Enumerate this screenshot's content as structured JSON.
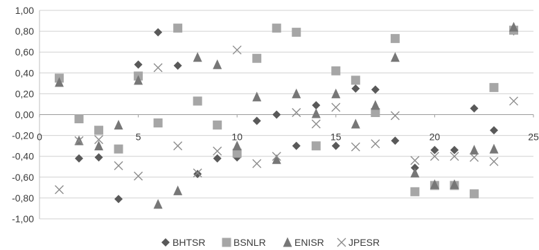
{
  "chart_data": {
    "type": "scatter",
    "xlim": [
      0,
      25
    ],
    "ylim": [
      -1.0,
      1.0
    ],
    "x_ticks": [
      "0",
      "5",
      "10",
      "15",
      "20",
      "25"
    ],
    "y_ticks": [
      "1,00",
      "0,80",
      "0,60",
      "0,40",
      "0,20",
      "0,00",
      "-0,20",
      "-0,40",
      "-0,60",
      "-0,80",
      "-1,00"
    ],
    "grid": "horizontal",
    "legend_position": "bottom",
    "series": [
      {
        "name": "BHTSR",
        "marker": "diamond",
        "color": "#595959",
        "points": [
          [
            2,
            -0.42
          ],
          [
            3,
            -0.41
          ],
          [
            4,
            -0.81
          ],
          [
            5,
            0.48
          ],
          [
            6,
            0.79
          ],
          [
            7,
            0.47
          ],
          [
            8,
            -0.57
          ],
          [
            9,
            -0.42
          ],
          [
            10,
            -0.41
          ],
          [
            11,
            -0.06
          ],
          [
            12,
            0.0
          ],
          [
            13,
            -0.3
          ],
          [
            14,
            0.09
          ],
          [
            15,
            -0.3
          ],
          [
            16,
            0.25
          ],
          [
            17,
            0.24
          ],
          [
            18,
            -0.25
          ],
          [
            19,
            -0.51
          ],
          [
            20,
            -0.34
          ],
          [
            21,
            -0.34
          ],
          [
            22,
            0.06
          ],
          [
            23,
            -0.15
          ],
          [
            24,
            0.8
          ]
        ]
      },
      {
        "name": "BSNLR",
        "marker": "square",
        "color": "#a6a6a6",
        "points": [
          [
            1,
            0.35
          ],
          [
            2,
            -0.04
          ],
          [
            3,
            -0.15
          ],
          [
            4,
            -0.33
          ],
          [
            5,
            0.37
          ],
          [
            6,
            -0.08
          ],
          [
            7,
            0.83
          ],
          [
            8,
            0.13
          ],
          [
            9,
            -0.1
          ],
          [
            10,
            -0.37
          ],
          [
            11,
            0.54
          ],
          [
            12,
            0.83
          ],
          [
            13,
            0.79
          ],
          [
            14,
            -0.3
          ],
          [
            15,
            0.42
          ],
          [
            16,
            0.33
          ],
          [
            17,
            0.02
          ],
          [
            18,
            0.73
          ],
          [
            19,
            -0.74
          ],
          [
            20,
            -0.68
          ],
          [
            21,
            -0.68
          ],
          [
            22,
            -0.76
          ],
          [
            23,
            0.26
          ],
          [
            24,
            0.81
          ]
        ]
      },
      {
        "name": "ENISR",
        "marker": "triangle",
        "color": "#777777",
        "points": [
          [
            1,
            0.31
          ],
          [
            2,
            -0.25
          ],
          [
            3,
            -0.3
          ],
          [
            4,
            -0.1
          ],
          [
            5,
            0.33
          ],
          [
            6,
            -0.86
          ],
          [
            7,
            -0.73
          ],
          [
            8,
            0.55
          ],
          [
            9,
            0.48
          ],
          [
            10,
            -0.3
          ],
          [
            11,
            0.17
          ],
          [
            12,
            -0.43
          ],
          [
            13,
            0.2
          ],
          [
            14,
            0.01
          ],
          [
            15,
            0.2
          ],
          [
            16,
            -0.09
          ],
          [
            17,
            0.09
          ],
          [
            18,
            0.55
          ],
          [
            19,
            -0.56
          ],
          [
            20,
            -0.67
          ],
          [
            21,
            -0.67
          ],
          [
            22,
            -0.34
          ],
          [
            23,
            -0.33
          ],
          [
            24,
            0.84
          ]
        ]
      },
      {
        "name": "JPESR",
        "marker": "x",
        "color": "#8c8c8c",
        "points": [
          [
            1,
            -0.72
          ],
          [
            2,
            -0.25
          ],
          [
            3,
            -0.24
          ],
          [
            4,
            -0.49
          ],
          [
            5,
            -0.59
          ],
          [
            6,
            0.45
          ],
          [
            7,
            -0.3
          ],
          [
            8,
            -0.56
          ],
          [
            9,
            -0.35
          ],
          [
            10,
            0.62
          ],
          [
            11,
            -0.47
          ],
          [
            12,
            -0.4
          ],
          [
            13,
            0.02
          ],
          [
            14,
            -0.09
          ],
          [
            15,
            0.07
          ],
          [
            16,
            -0.31
          ],
          [
            17,
            -0.28
          ],
          [
            18,
            -0.01
          ],
          [
            19,
            -0.44
          ],
          [
            20,
            -0.4
          ],
          [
            21,
            -0.4
          ],
          [
            22,
            -0.41
          ],
          [
            23,
            -0.45
          ],
          [
            24,
            0.13
          ]
        ]
      }
    ]
  }
}
